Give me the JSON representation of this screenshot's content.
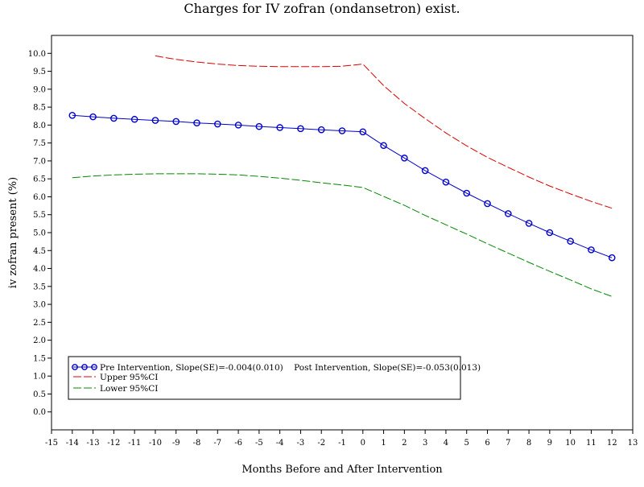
{
  "chart_data": {
    "type": "line",
    "title": "Charges for IV zofran (ondansetron) exist.",
    "xlabel": "Months Before and After Intervention",
    "ylabel": "iv zofran present (%)",
    "xlim": [
      -15,
      13
    ],
    "ylim": [
      -0.5,
      10.5
    ],
    "x_ticks": [
      "-15",
      "-14",
      "-13",
      "-12",
      "-11",
      "-10",
      "-9",
      "-8",
      "-7",
      "-6",
      "-5",
      "-4",
      "-3",
      "-2",
      "-1",
      "0",
      "1",
      "2",
      "3",
      "4",
      "5",
      "6",
      "7",
      "8",
      "9",
      "10",
      "11",
      "12",
      "13"
    ],
    "y_ticks": [
      "0.0",
      "0.5",
      "1.0",
      "1.5",
      "2.0",
      "2.5",
      "3.0",
      "3.5",
      "4.0",
      "4.5",
      "5.0",
      "5.5",
      "6.0",
      "6.5",
      "7.0",
      "7.5",
      "8.0",
      "8.5",
      "9.0",
      "9.5",
      "10.0"
    ],
    "x": [
      -14,
      -13,
      -12,
      -11,
      -10,
      -9,
      -8,
      -7,
      -6,
      -5,
      -4,
      -3,
      -2,
      -1,
      0,
      1,
      2,
      3,
      4,
      5,
      6,
      7,
      8,
      9,
      10,
      11,
      12
    ],
    "series": [
      {
        "name": "Pre Intervention, Slope(SE)=-0.004(0.010)    Post Intervention, Slope(SE)=-0.053(0.013)",
        "color": "#0000cc",
        "style": "solid-circles",
        "x": [
          -14,
          -13,
          -12,
          -11,
          -10,
          -9,
          -8,
          -7,
          -6,
          -5,
          -4,
          -3,
          -2,
          -1,
          0,
          1,
          2,
          3,
          4,
          5,
          6,
          7,
          8,
          9,
          10,
          11,
          12
        ],
        "values": [
          8.27,
          8.23,
          8.19,
          8.16,
          8.13,
          8.1,
          8.06,
          8.03,
          8.0,
          7.96,
          7.93,
          7.9,
          7.87,
          7.84,
          7.81,
          7.43,
          7.08,
          6.73,
          6.41,
          6.1,
          5.81,
          5.53,
          5.26,
          5.0,
          4.76,
          4.52,
          4.3
        ]
      },
      {
        "name": "Upper 95%CI",
        "color": "#dd0000",
        "style": "dashed",
        "x": [
          -10,
          -9,
          -8,
          -7,
          -6,
          -5,
          -4,
          -3,
          -2,
          -1,
          0,
          1,
          2,
          3,
          4,
          5,
          6,
          7,
          8,
          9,
          10,
          11,
          12
        ],
        "values": [
          9.93,
          9.83,
          9.76,
          9.7,
          9.66,
          9.64,
          9.63,
          9.63,
          9.63,
          9.64,
          9.7,
          9.1,
          8.6,
          8.18,
          7.78,
          7.42,
          7.1,
          6.82,
          6.55,
          6.3,
          6.08,
          5.87,
          5.68
        ]
      },
      {
        "name": "Lower 95%CI",
        "color": "#008800",
        "style": "dashed",
        "x": [
          -14,
          -13,
          -12,
          -11,
          -10,
          -9,
          -8,
          -7,
          -6,
          -5,
          -4,
          -3,
          -2,
          -1,
          0,
          1,
          2,
          3,
          4,
          5,
          6,
          7,
          8,
          9,
          10,
          11,
          12
        ],
        "values": [
          6.53,
          6.58,
          6.61,
          6.63,
          6.64,
          6.64,
          6.64,
          6.63,
          6.61,
          6.57,
          6.52,
          6.46,
          6.39,
          6.33,
          6.26,
          6.01,
          5.76,
          5.48,
          5.22,
          4.96,
          4.69,
          4.43,
          4.17,
          3.92,
          3.68,
          3.43,
          3.22
        ]
      }
    ],
    "legend_position": "bottom-left",
    "grid": false
  }
}
